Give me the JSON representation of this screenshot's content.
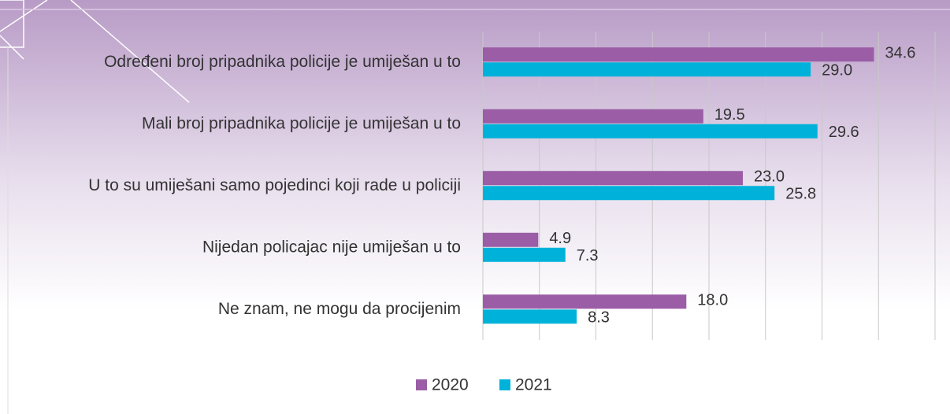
{
  "chart_data": {
    "type": "hbar",
    "categories": [
      "Određeni broj pripadnika policije je umiješan u to",
      "Mali broj pripadnika policije je umiješan u to",
      "U to su umiješani samo pojedinci koji rade u policiji",
      "Nijedan policajac nije umiješan u to",
      "Ne znam, ne mogu da procijenim"
    ],
    "series": [
      {
        "name": "2020",
        "color": "#9a5da6",
        "values": [
          34.6,
          19.5,
          23.0,
          4.9,
          18.0
        ],
        "value_labels": [
          "34.6",
          "19.5",
          "23.0",
          "4.9",
          "18.0"
        ]
      },
      {
        "name": "2021",
        "color": "#00b2d9",
        "values": [
          29.0,
          29.6,
          25.8,
          7.3,
          8.3
        ],
        "value_labels": [
          "29.0",
          "29.6",
          "25.8",
          "7.3",
          "8.3"
        ]
      }
    ],
    "xlim": [
      0,
      40
    ],
    "xticks": [
      0,
      5,
      10,
      15,
      20,
      25,
      30,
      35,
      40
    ],
    "grid": true,
    "legend": "bottom"
  }
}
